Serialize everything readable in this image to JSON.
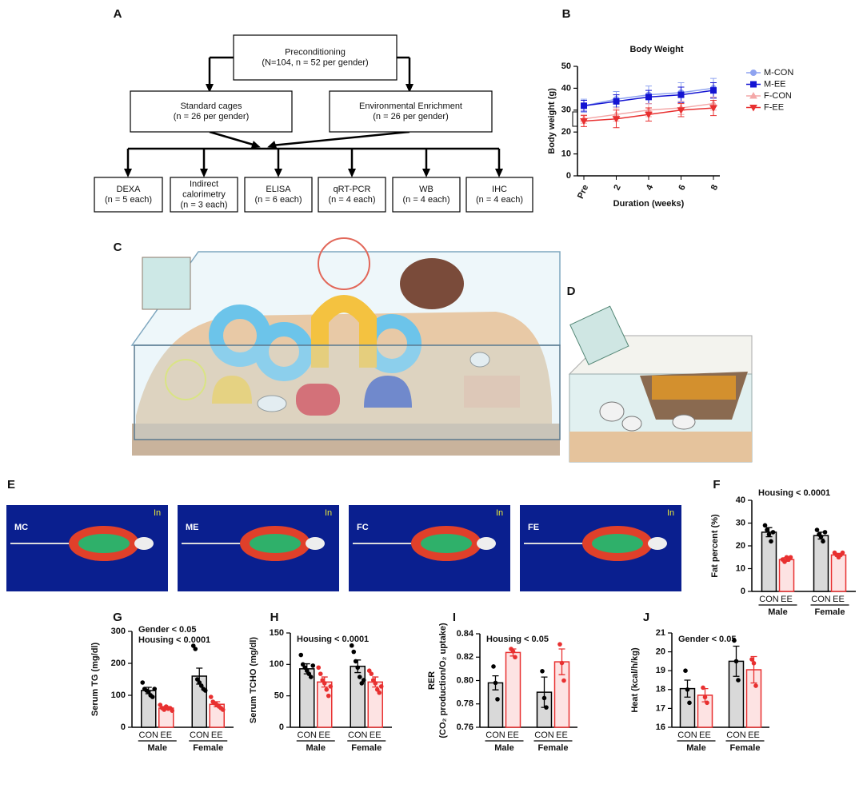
{
  "panel_labels": [
    "A",
    "B",
    "C",
    "D",
    "E",
    "F",
    "G",
    "H",
    "I",
    "J"
  ],
  "flowchart": {
    "nodes": [
      {
        "lines": [
          "Preconditioning",
          "(N=104, n = 52 per gender)"
        ]
      },
      {
        "lines": [
          "Standard cages",
          "(n = 26 per gender)"
        ]
      },
      {
        "lines": [
          "Environmental Enrichment",
          "(n = 26 per gender)"
        ]
      },
      {
        "lines": [
          "DEXA",
          "(n = 5 each)"
        ]
      },
      {
        "lines": [
          "Indirect",
          "calorimetry",
          "(n = 3 each)"
        ]
      },
      {
        "lines": [
          "ELISA",
          "(n = 6 each)"
        ]
      },
      {
        "lines": [
          "qRT-PCR",
          "(n = 4 each)"
        ]
      },
      {
        "lines": [
          "WB",
          "(n = 4 each)"
        ]
      },
      {
        "lines": [
          "IHC",
          "(n = 4 each)"
        ]
      }
    ]
  },
  "images": [
    {
      "label": "MC",
      "corner": "In"
    },
    {
      "label": "ME",
      "corner": "In"
    },
    {
      "label": "FC",
      "corner": "In"
    },
    {
      "label": "FE",
      "corner": "In"
    }
  ],
  "chart_data": [
    {
      "type": "line",
      "title": "Body Weight",
      "xlabel": "Duration (weeks)",
      "ylabel": "Body weight (g)",
      "categories": [
        "Pre",
        "2",
        "4",
        "6",
        "8"
      ],
      "ylim": [
        0,
        50
      ],
      "yticks": [
        0,
        10,
        20,
        30,
        40,
        50
      ],
      "series": [
        {
          "name": "M-CON",
          "color": "#8fa3f0",
          "marker": "circle",
          "values": [
            32,
            35,
            37,
            38,
            40
          ],
          "errors": [
            3,
            3.5,
            4,
            4.5,
            4.5
          ]
        },
        {
          "name": "M-EE",
          "color": "#1414d2",
          "marker": "square",
          "values": [
            32,
            34,
            36,
            37,
            39
          ],
          "errors": [
            2.5,
            3,
            3,
            3.5,
            3.5
          ]
        },
        {
          "name": "F-CON",
          "color": "#f4a8a8",
          "marker": "triangle-up",
          "values": [
            26,
            28,
            30,
            31,
            33
          ],
          "errors": [
            2,
            3,
            3,
            3,
            3
          ]
        },
        {
          "name": "F-EE",
          "color": "#e83030",
          "marker": "triangle-down",
          "values": [
            25,
            26,
            28,
            30,
            31
          ],
          "errors": [
            2.5,
            4,
            3,
            3,
            3.5
          ]
        }
      ]
    },
    {
      "type": "bar",
      "annotations": [
        "Housing < 0.0001"
      ],
      "ylabel": "Fat percent (%)",
      "categories": [
        "Male",
        "Female"
      ],
      "ylim": [
        0,
        40
      ],
      "yticks": [
        0,
        10,
        20,
        30,
        40
      ],
      "series": [
        {
          "name": "CON",
          "color": "#000000",
          "fill": "#d9d9d9",
          "values": [
            26,
            24.5
          ],
          "errors": [
            2,
            1.5
          ],
          "points": [
            [
              29,
              27,
              25,
              22,
              26
            ],
            [
              27,
              25,
              24,
              22,
              26
            ]
          ]
        },
        {
          "name": "EE",
          "color": "#e83030",
          "fill": "#fde3e3",
          "values": [
            14,
            16
          ],
          "errors": [
            0.8,
            0.7
          ],
          "points": [
            [
              14,
              13,
              15,
              14,
              15
            ],
            [
              17,
              16,
              15,
              16,
              17
            ]
          ]
        }
      ]
    },
    {
      "type": "bar",
      "annotations": [
        "Gender < 0.05",
        "Housing < 0.0001"
      ],
      "ylabel": "Serum TG (mg/dl)",
      "categories": [
        "Male",
        "Female"
      ],
      "ylim": [
        0,
        300
      ],
      "yticks": [
        0,
        100,
        200,
        300
      ],
      "series": [
        {
          "name": "CON",
          "color": "#000000",
          "fill": "#d9d9d9",
          "values": [
            115,
            160
          ],
          "errors": [
            10,
            25
          ],
          "points": [
            [
              140,
              120,
              115,
              110,
              100,
              95,
              120
            ],
            [
              255,
              245,
              150,
              140,
              130,
              120,
              115
            ]
          ]
        },
        {
          "name": "EE",
          "color": "#e83030",
          "fill": "#fde3e3",
          "values": [
            60,
            72
          ],
          "errors": [
            5,
            8
          ],
          "points": [
            [
              70,
              60,
              55,
              65,
              58,
              60,
              52
            ],
            [
              95,
              80,
              75,
              70,
              65,
              60,
              55
            ]
          ]
        }
      ]
    },
    {
      "type": "bar",
      "annotations": [
        "Housing < 0.0001"
      ],
      "ylabel": "Serum TCHO (mg/dl)",
      "categories": [
        "Male",
        "Female"
      ],
      "ylim": [
        0,
        150
      ],
      "yticks": [
        0,
        50,
        100,
        150
      ],
      "series": [
        {
          "name": "CON",
          "color": "#000000",
          "fill": "#d9d9d9",
          "values": [
            93,
            97
          ],
          "errors": [
            8,
            10
          ],
          "points": [
            [
              115,
              100,
              95,
              90,
              85,
              80,
              98
            ],
            [
              130,
              120,
              105,
              95,
              80,
              70,
              75
            ]
          ]
        },
        {
          "name": "EE",
          "color": "#e83030",
          "fill": "#fde3e3",
          "values": [
            72,
            72
          ],
          "errors": [
            8,
            8
          ],
          "points": [
            [
              95,
              85,
              75,
              70,
              60,
              50,
              65
            ],
            [
              90,
              85,
              75,
              70,
              60,
              55,
              65
            ]
          ]
        }
      ]
    },
    {
      "type": "bar",
      "annotations": [
        "Housing < 0.05"
      ],
      "ylabel": [
        "RER",
        "(CO₂ production/O₂ uptake)"
      ],
      "categories": [
        "Male",
        "Female"
      ],
      "ylim": [
        0.76,
        0.84
      ],
      "yticks": [
        0.76,
        0.78,
        {
          "value": 0.8,
          "label": "0.80"
        },
        0.82,
        0.84
      ],
      "series": [
        {
          "name": "CON",
          "color": "#000000",
          "fill": "#d9d9d9",
          "values": [
            0.798,
            0.79
          ],
          "errors": [
            0.006,
            0.013
          ],
          "points": [
            [
              0.812,
              0.798,
              0.784
            ],
            [
              0.808,
              0.785,
              0.777
            ]
          ]
        },
        {
          "name": "EE",
          "color": "#e83030",
          "fill": "#fde3e3",
          "values": [
            0.824,
            0.816
          ],
          "errors": [
            0.003,
            0.011
          ],
          "points": [
            [
              0.827,
              0.825,
              0.82
            ],
            [
              0.831,
              0.815,
              0.8
            ]
          ]
        }
      ]
    },
    {
      "type": "bar",
      "annotations": [
        "Gender < 0.05"
      ],
      "ylabel": "Heat (kcal/h/kg)",
      "categories": [
        "Male",
        "Female"
      ],
      "ylim": [
        16,
        21
      ],
      "yticks": [
        16,
        17,
        18,
        19,
        20,
        21
      ],
      "series": [
        {
          "name": "CON",
          "color": "#000000",
          "fill": "#d9d9d9",
          "values": [
            18.05,
            19.5
          ],
          "errors": [
            0.45,
            0.8
          ],
          "points": [
            [
              19,
              18,
              17.3
            ],
            [
              20.6,
              19.5,
              18.5
            ]
          ]
        },
        {
          "name": "EE",
          "color": "#e83030",
          "fill": "#fde3e3",
          "values": [
            17.7,
            19.05
          ],
          "errors": [
            0.35,
            0.7
          ],
          "points": [
            [
              18.1,
              17.6,
              17.3
            ],
            [
              19.6,
              19.4,
              18.2
            ]
          ]
        }
      ]
    }
  ]
}
